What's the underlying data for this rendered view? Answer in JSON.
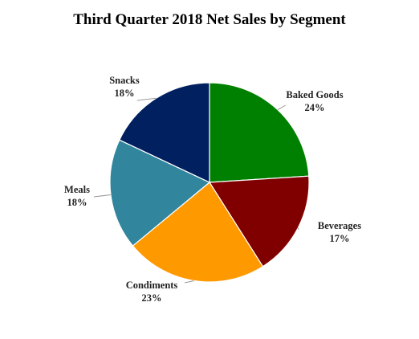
{
  "chart_data": {
    "type": "pie",
    "title": "Third Quarter 2018 Net Sales by Segment",
    "slices": [
      {
        "name": "Baked Goods",
        "value": 24,
        "label": "24%",
        "color": "#008000"
      },
      {
        "name": "Beverages",
        "value": 17,
        "label": "17%",
        "color": "#800000"
      },
      {
        "name": "Condiments",
        "value": 23,
        "label": "23%",
        "color": "#FF9900"
      },
      {
        "name": "Meals",
        "value": 18,
        "label": "18%",
        "color": "#31859C"
      },
      {
        "name": "Snacks",
        "value": 18,
        "label": "18%",
        "color": "#002060"
      }
    ],
    "start_angle": "12 o'clock",
    "direction": "clockwise",
    "legend": "none",
    "labels": "outside with leader lines"
  }
}
